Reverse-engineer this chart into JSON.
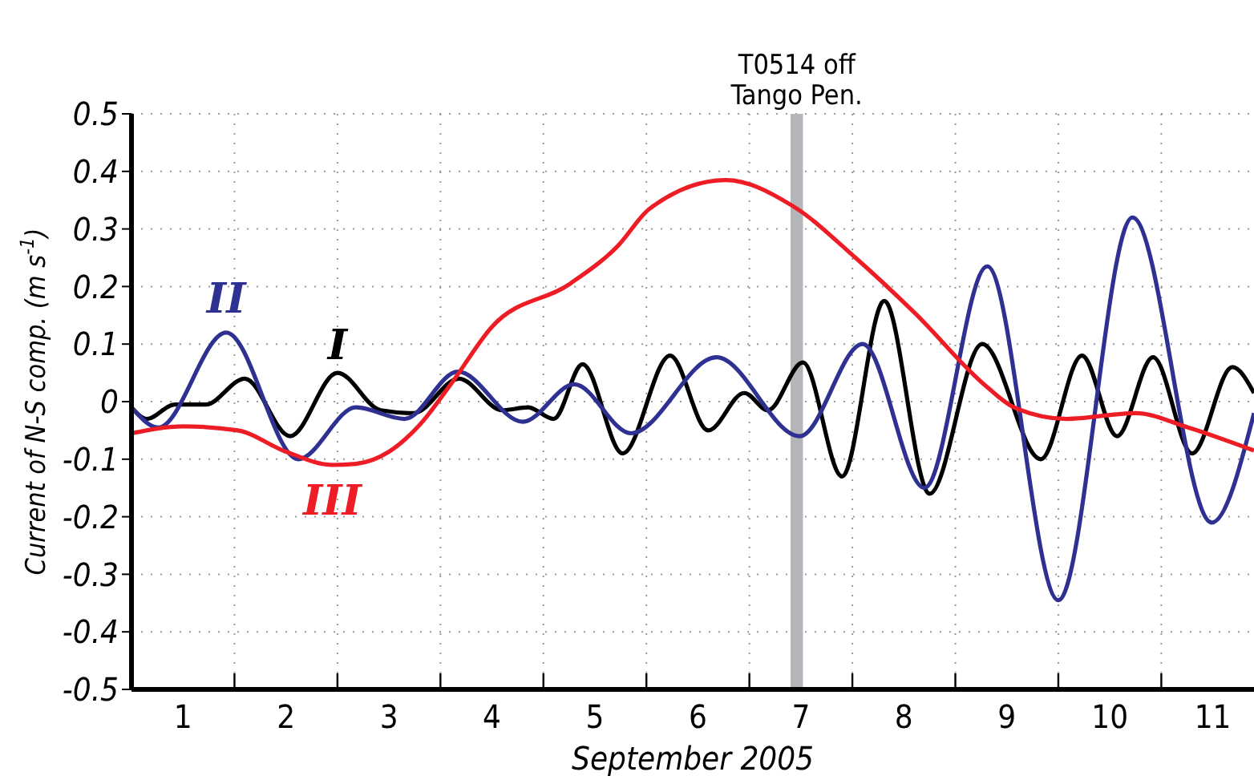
{
  "chart_data": {
    "type": "line",
    "xlabel": "September 2005",
    "ylabel": "Current of N-S comp. (m s$^{-1}$)",
    "xlim": [
      1,
      11.9
    ],
    "xticks": [
      {
        "value": 1.5,
        "label": "1"
      },
      {
        "value": 2,
        "label": null
      },
      {
        "value": 2.5,
        "label": "2"
      },
      {
        "value": 3,
        "label": null
      },
      {
        "value": 3.5,
        "label": "3"
      },
      {
        "value": 4,
        "label": null
      },
      {
        "value": 4.5,
        "label": "4"
      },
      {
        "value": 5,
        "label": null
      },
      {
        "value": 5.5,
        "label": "5"
      },
      {
        "value": 6,
        "label": null
      },
      {
        "value": 6.5,
        "label": "6"
      },
      {
        "value": 7,
        "label": null
      },
      {
        "value": 7.5,
        "label": "7"
      },
      {
        "value": 8,
        "label": null
      },
      {
        "value": 8.5,
        "label": "8"
      },
      {
        "value": 9,
        "label": null
      },
      {
        "value": 9.5,
        "label": "9"
      },
      {
        "value": 10,
        "label": null
      },
      {
        "value": 10.5,
        "label": "10"
      },
      {
        "value": 11,
        "label": null
      },
      {
        "value": 11.5,
        "label": "11"
      }
    ],
    "ylim": [
      -0.5,
      0.5
    ],
    "yticks": [
      -0.5,
      -0.4,
      -0.3,
      -0.2,
      -0.1,
      0,
      0.1,
      0.2,
      0.3,
      0.4,
      0.5
    ],
    "grid": true,
    "line_style": "solid",
    "bands": [
      {
        "axis": "x",
        "from": 7.4,
        "to": 7.52,
        "label": "T0514 off\nTango Pen.",
        "color": "#b3b5b9"
      }
    ],
    "series": [
      {
        "name": "I",
        "color": "#000000",
        "x": [
          1.0,
          1.15,
          1.42,
          1.72,
          2.1,
          2.54,
          3.0,
          3.42,
          3.74,
          4.18,
          4.6,
          4.85,
          5.1,
          5.38,
          5.77,
          6.23,
          6.6,
          6.95,
          7.18,
          7.52,
          7.9,
          8.31,
          8.75,
          9.26,
          9.83,
          10.23,
          10.57,
          10.92,
          11.3,
          11.69,
          11.9
        ],
        "values": [
          -0.01,
          -0.03,
          -0.005,
          -0.005,
          0.04,
          -0.06,
          0.05,
          -0.015,
          -0.02,
          0.04,
          -0.015,
          -0.01,
          -0.03,
          0.065,
          -0.09,
          0.08,
          -0.05,
          0.015,
          -0.015,
          0.068,
          -0.13,
          0.175,
          -0.16,
          0.1,
          -0.1,
          0.08,
          -0.06,
          0.077,
          -0.09,
          0.06,
          0.015
        ]
      },
      {
        "name": "II",
        "color": "#2e3192",
        "x": [
          1.0,
          1.26,
          1.92,
          2.62,
          3.18,
          3.65,
          4.17,
          4.8,
          5.3,
          5.85,
          6.68,
          7.49,
          8.1,
          8.7,
          9.31,
          10.0,
          10.72,
          11.49,
          11.9
        ],
        "values": [
          -0.01,
          -0.045,
          0.12,
          -0.1,
          -0.01,
          -0.03,
          0.052,
          -0.035,
          0.03,
          -0.055,
          0.077,
          -0.06,
          0.1,
          -0.15,
          0.235,
          -0.345,
          0.32,
          -0.21,
          -0.02
        ]
      },
      {
        "name": "III",
        "color": "#ee1c24",
        "x": [
          1.0,
          1.5,
          2.03,
          2.5,
          2.95,
          3.18,
          3.5,
          3.8,
          4.1,
          4.5,
          5.26,
          5.72,
          6.03,
          6.77,
          7.42,
          8.03,
          8.6,
          9.31,
          9.57,
          10.08,
          10.75,
          11.26,
          11.9
        ],
        "values": [
          -0.055,
          -0.043,
          -0.05,
          -0.087,
          -0.11,
          -0.108,
          -0.087,
          -0.04,
          0.03,
          0.13,
          0.205,
          0.27,
          0.335,
          0.385,
          0.34,
          0.25,
          0.155,
          0.025,
          -0.01,
          -0.03,
          -0.02,
          -0.045,
          -0.085
        ]
      }
    ]
  }
}
